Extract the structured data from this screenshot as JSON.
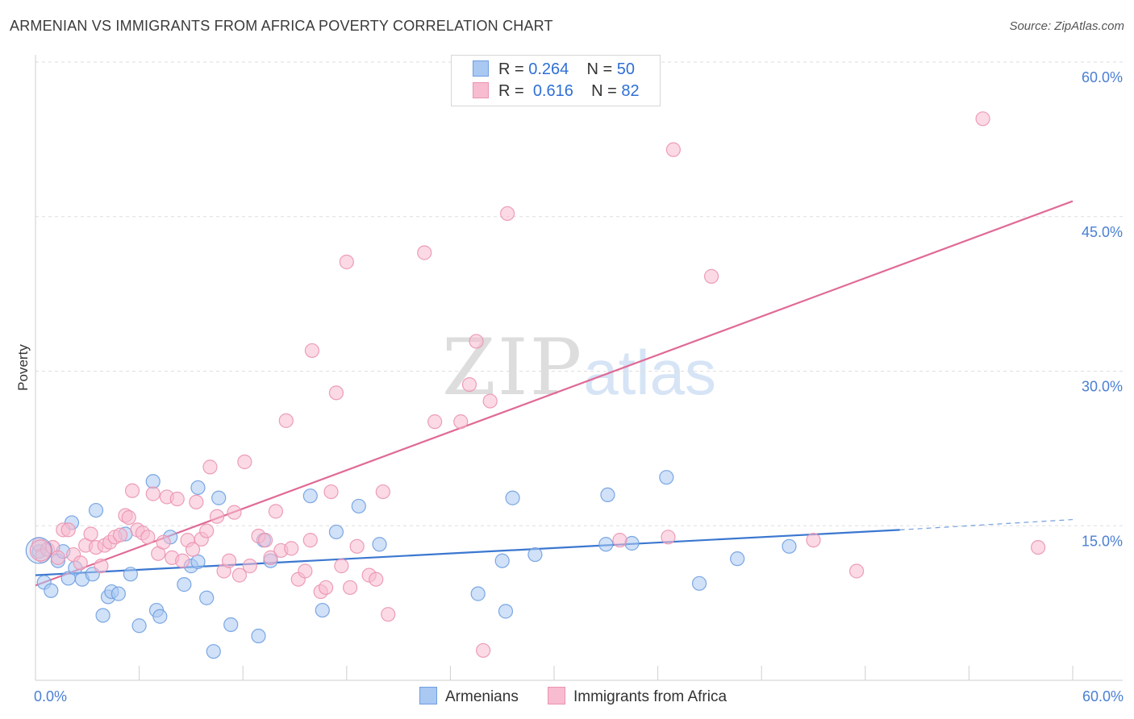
{
  "title": "ARMENIAN VS IMMIGRANTS FROM AFRICA POVERTY CORRELATION CHART",
  "source": "Source: ZipAtlas.com",
  "watermark": {
    "zip": "ZIP",
    "atlas": "atlas"
  },
  "legend": {
    "series1": {
      "r_label": "R =",
      "r_value": "0.264",
      "n_label": "N =",
      "n_value": "50"
    },
    "series2": {
      "r_label": "R =",
      "r_value": "0.616",
      "n_label": "N =",
      "n_value": "82"
    }
  },
  "bottom_legend": {
    "series1": "Armenians",
    "series2": "Immigrants from Africa"
  },
  "colors": {
    "blue_fill": "#a9c8f2",
    "blue_stroke": "#6f9fe0",
    "blue_line": "#3b77d0",
    "pink_fill": "#f7bccf",
    "pink_stroke": "#eb93b1",
    "pink_line": "#e06a96",
    "grid": "#dedede",
    "tick_text": "#4a7fd4"
  },
  "chart_data": {
    "type": "scatter",
    "title": "ARMENIAN VS IMMIGRANTS FROM AFRICA POVERTY CORRELATION CHART",
    "xlabel": "",
    "ylabel": "Poverty",
    "xlim": [
      0,
      60
    ],
    "ylim": [
      0,
      60
    ],
    "x_tick_labels": [
      "0.0%",
      "60.0%"
    ],
    "y_ticks": [
      15,
      30,
      45,
      60
    ],
    "y_tick_labels": [
      "15.0%",
      "30.0%",
      "45.0%",
      "60.0%"
    ],
    "grid": true,
    "legend_position": "top-center",
    "series": [
      {
        "name": "Armenians",
        "R": 0.264,
        "N": 50,
        "trend": {
          "x": [
            0,
            50
          ],
          "y": [
            10.2,
            14.6
          ],
          "dashed_extension": {
            "x": [
              50,
              60
            ],
            "y": [
              14.6,
              15.6
            ]
          }
        },
        "points": [
          [
            0.2,
            12.5
          ],
          [
            0.5,
            9.5
          ],
          [
            0.9,
            8.7
          ],
          [
            1.3,
            11.6
          ],
          [
            1.6,
            12.5
          ],
          [
            1.9,
            9.9
          ],
          [
            2.1,
            15.3
          ],
          [
            2.3,
            10.9
          ],
          [
            2.7,
            9.8
          ],
          [
            3.3,
            10.3
          ],
          [
            3.5,
            16.5
          ],
          [
            3.9,
            6.3
          ],
          [
            4.2,
            8.1
          ],
          [
            4.4,
            8.6
          ],
          [
            4.8,
            8.4
          ],
          [
            5.2,
            14.2
          ],
          [
            5.5,
            10.3
          ],
          [
            6.0,
            5.3
          ],
          [
            6.8,
            19.3
          ],
          [
            7.0,
            6.8
          ],
          [
            7.2,
            6.2
          ],
          [
            7.8,
            13.9
          ],
          [
            8.6,
            9.3
          ],
          [
            9.0,
            11.1
          ],
          [
            9.4,
            11.5
          ],
          [
            9.4,
            18.7
          ],
          [
            9.9,
            8.0
          ],
          [
            10.3,
            2.8
          ],
          [
            10.6,
            17.7
          ],
          [
            11.3,
            5.4
          ],
          [
            12.9,
            4.3
          ],
          [
            13.2,
            13.6
          ],
          [
            13.6,
            11.6
          ],
          [
            15.9,
            17.9
          ],
          [
            16.6,
            6.8
          ],
          [
            17.4,
            14.4
          ],
          [
            18.7,
            16.9
          ],
          [
            19.9,
            13.2
          ],
          [
            25.6,
            8.4
          ],
          [
            27.0,
            11.6
          ],
          [
            27.2,
            6.7
          ],
          [
            27.6,
            17.7
          ],
          [
            28.9,
            12.2
          ],
          [
            33.0,
            13.2
          ],
          [
            33.1,
            18.0
          ],
          [
            34.5,
            13.3
          ],
          [
            36.5,
            19.7
          ],
          [
            38.4,
            9.4
          ],
          [
            40.6,
            11.8
          ],
          [
            43.6,
            13.0
          ]
        ]
      },
      {
        "name": "Immigrants from Africa",
        "R": 0.616,
        "N": 82,
        "trend": {
          "x": [
            0,
            60
          ],
          "y": [
            9.2,
            46.5
          ]
        },
        "points": [
          [
            0.2,
            13.2
          ],
          [
            0.4,
            12.1
          ],
          [
            0.7,
            12.7
          ],
          [
            1.0,
            12.9
          ],
          [
            1.3,
            11.9
          ],
          [
            1.6,
            14.6
          ],
          [
            1.9,
            14.6
          ],
          [
            2.2,
            12.2
          ],
          [
            2.6,
            11.4
          ],
          [
            2.9,
            13.1
          ],
          [
            3.2,
            14.2
          ],
          [
            3.5,
            12.9
          ],
          [
            3.8,
            11.1
          ],
          [
            4.0,
            13.1
          ],
          [
            4.3,
            13.4
          ],
          [
            4.6,
            13.9
          ],
          [
            4.9,
            14.1
          ],
          [
            5.2,
            16.0
          ],
          [
            5.4,
            15.8
          ],
          [
            5.6,
            18.4
          ],
          [
            5.9,
            14.6
          ],
          [
            6.2,
            14.3
          ],
          [
            6.5,
            13.9
          ],
          [
            6.8,
            18.1
          ],
          [
            7.1,
            12.3
          ],
          [
            7.4,
            13.4
          ],
          [
            7.6,
            17.8
          ],
          [
            7.9,
            11.9
          ],
          [
            8.2,
            17.6
          ],
          [
            8.5,
            11.6
          ],
          [
            8.8,
            13.6
          ],
          [
            9.1,
            12.7
          ],
          [
            9.3,
            17.3
          ],
          [
            9.6,
            13.7
          ],
          [
            9.9,
            14.5
          ],
          [
            10.1,
            20.7
          ],
          [
            10.5,
            15.9
          ],
          [
            10.9,
            10.6
          ],
          [
            11.2,
            11.6
          ],
          [
            11.5,
            16.3
          ],
          [
            11.8,
            10.2
          ],
          [
            12.1,
            21.2
          ],
          [
            12.4,
            11.1
          ],
          [
            12.9,
            14.0
          ],
          [
            13.3,
            13.6
          ],
          [
            13.6,
            11.9
          ],
          [
            13.9,
            16.4
          ],
          [
            14.2,
            12.6
          ],
          [
            14.5,
            25.2
          ],
          [
            14.8,
            12.8
          ],
          [
            15.2,
            9.8
          ],
          [
            15.6,
            10.6
          ],
          [
            15.9,
            13.6
          ],
          [
            16.0,
            32.0
          ],
          [
            16.5,
            8.6
          ],
          [
            16.8,
            9.0
          ],
          [
            17.1,
            18.3
          ],
          [
            17.4,
            27.9
          ],
          [
            17.7,
            11.1
          ],
          [
            18.0,
            40.6
          ],
          [
            18.2,
            9.0
          ],
          [
            18.6,
            13.0
          ],
          [
            19.3,
            10.2
          ],
          [
            19.7,
            9.8
          ],
          [
            20.1,
            18.3
          ],
          [
            20.4,
            6.4
          ],
          [
            22.5,
            41.5
          ],
          [
            23.1,
            25.1
          ],
          [
            24.6,
            25.1
          ],
          [
            25.1,
            28.7
          ],
          [
            25.5,
            32.9
          ],
          [
            25.9,
            2.9
          ],
          [
            26.3,
            27.1
          ],
          [
            27.3,
            45.3
          ],
          [
            33.8,
            13.6
          ],
          [
            36.6,
            13.9
          ],
          [
            36.9,
            51.5
          ],
          [
            39.1,
            39.2
          ],
          [
            45.0,
            13.6
          ],
          [
            47.5,
            10.6
          ],
          [
            54.8,
            54.5
          ],
          [
            58.0,
            12.9
          ]
        ]
      }
    ]
  }
}
